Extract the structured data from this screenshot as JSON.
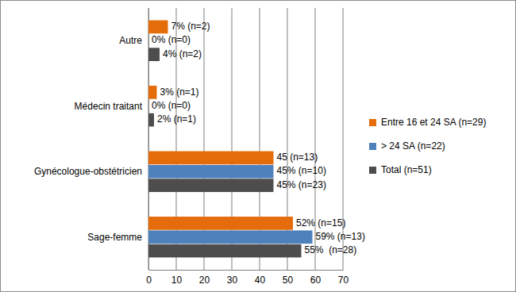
{
  "chart_data": {
    "type": "bar",
    "orientation": "horizontal",
    "categories": [
      "Autre",
      "Médecin traitant",
      "Gynécologue-obstétricien",
      "Sage-femme"
    ],
    "series": [
      {
        "name": "Entre 16 et 24 SA (n=29)",
        "color": "#e46c0a",
        "values": [
          7,
          3,
          45,
          52
        ],
        "value_labels": [
          "7% (n=2)",
          "3% (n=1)",
          "45 (n=13)",
          "52% (n=15)"
        ]
      },
      {
        "name": "> 24 SA (n=22)",
        "color": "#4f81bd",
        "values": [
          0,
          0,
          45,
          59
        ],
        "value_labels": [
          "0% (n=0)",
          "0% (n=0)",
          "45% (n=10)",
          "59% (n=13)"
        ]
      },
      {
        "name": "Total (n=51)",
        "color": "#4d4d4d",
        "values": [
          4,
          2,
          45,
          55
        ],
        "value_labels": [
          "4% (n=2)",
          "2% (n=1)",
          "45% (n=23)",
          "55%  (n=28)"
        ]
      }
    ],
    "xlim": [
      0,
      70
    ],
    "xticks": [
      0,
      10,
      20,
      30,
      40,
      50,
      60,
      70
    ],
    "grid": true,
    "legend": "right",
    "data_labels": true
  }
}
